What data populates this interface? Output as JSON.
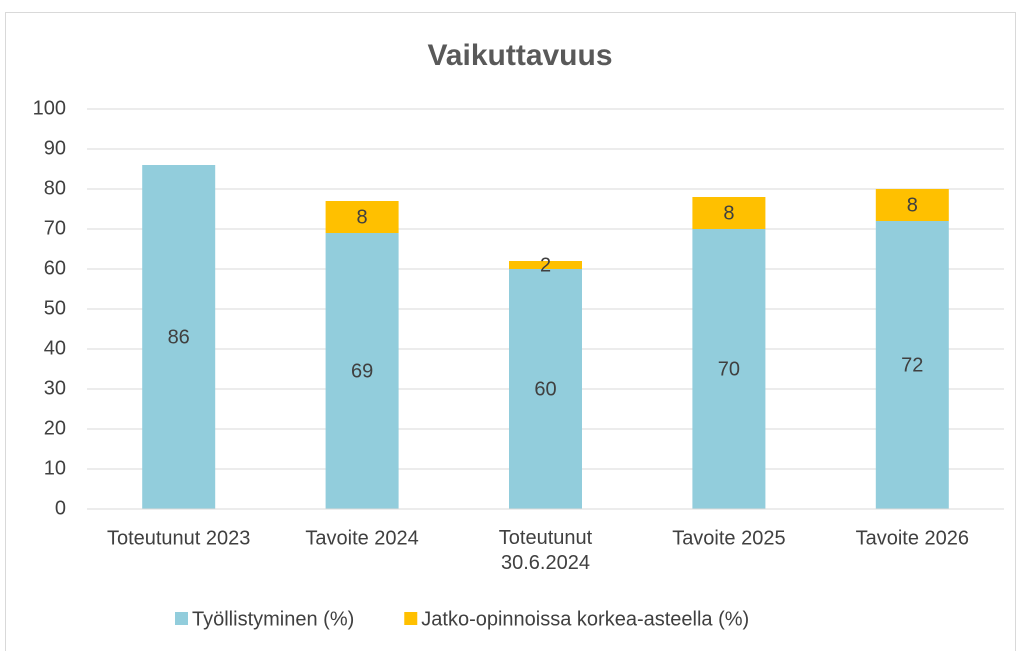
{
  "chart_data": {
    "type": "stacked_bar",
    "title": "Vaikuttavuus",
    "categories": [
      "Toteutunut 2023",
      "Tavoite 2024",
      "Toteutunut\n30.6.2024",
      "Tavoite 2025",
      "Tavoite 2026"
    ],
    "series": [
      {
        "name": "Työllistyminen (%)",
        "color": "#92cddc",
        "values": [
          86,
          69,
          60,
          70,
          72
        ]
      },
      {
        "name": "Jatko-opinnoissa korkea-asteella (%)",
        "color": "#ffc000",
        "values": [
          null,
          8,
          2,
          8,
          8
        ]
      }
    ],
    "ylim": [
      0,
      100
    ],
    "yticks": [
      0,
      10,
      20,
      30,
      40,
      50,
      60,
      70,
      80,
      90,
      100
    ],
    "grid": true,
    "legend": "bottom"
  }
}
